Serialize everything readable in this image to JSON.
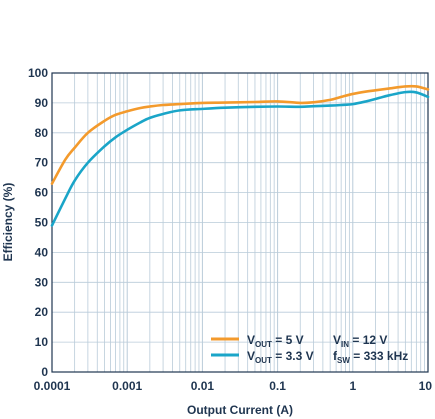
{
  "chart_data": {
    "type": "line",
    "xlabel": "Output Current (A)",
    "ylabel": "Efficiency (%)",
    "x_scale": "log",
    "xlim": [
      0.0001,
      10
    ],
    "ylim": [
      0,
      100
    ],
    "x_ticks": [
      {
        "value": 0.0001,
        "label": "0.0001"
      },
      {
        "value": 0.001,
        "label": "0.001"
      },
      {
        "value": 0.01,
        "label": "0.01"
      },
      {
        "value": 0.1,
        "label": "0.1"
      },
      {
        "value": 1,
        "label": "1"
      },
      {
        "value": 10,
        "label": "10"
      }
    ],
    "y_ticks": [
      0,
      10,
      20,
      30,
      40,
      50,
      60,
      70,
      80,
      90,
      100
    ],
    "grid": true,
    "legend_position": "bottom-right",
    "series": [
      {
        "name_main": "V",
        "name_sub": "OUT",
        "name_tail": " = 5 V",
        "color": "#f39a2c",
        "x": [
          0.0001,
          0.00015,
          0.0002,
          0.0003,
          0.0005,
          0.0007,
          0.001,
          0.0015,
          0.002,
          0.003,
          0.005,
          0.01,
          0.02,
          0.05,
          0.1,
          0.2,
          0.3,
          0.5,
          0.7,
          1,
          1.5,
          2,
          3,
          5,
          7,
          10
        ],
        "y": [
          63,
          71,
          75,
          80,
          84,
          86,
          87.2,
          88.3,
          88.8,
          89.3,
          89.6,
          90,
          90.1,
          90.3,
          90.5,
          90,
          90.2,
          91,
          92,
          93,
          93.8,
          94.2,
          94.8,
          95.5,
          95.5,
          94.5
        ]
      },
      {
        "name_main": "V",
        "name_sub": "OUT",
        "name_tail": " = 3.3 V",
        "color": "#1aa5c8",
        "x": [
          0.0001,
          0.00015,
          0.0002,
          0.0003,
          0.0005,
          0.0007,
          0.001,
          0.0015,
          0.002,
          0.003,
          0.005,
          0.01,
          0.02,
          0.05,
          0.1,
          0.2,
          0.3,
          0.5,
          0.7,
          1,
          1.5,
          2,
          3,
          5,
          7,
          10
        ],
        "y": [
          49,
          58,
          64,
          70,
          75.5,
          78.5,
          81,
          83.5,
          85,
          86.3,
          87.5,
          88,
          88.4,
          88.7,
          88.8,
          88.7,
          88.9,
          89.1,
          89.3,
          89.6,
          90.5,
          91.3,
          92.5,
          93.6,
          93.5,
          92
        ]
      }
    ],
    "annotations": [
      {
        "main": "V",
        "sub": "IN",
        "tail": " = 12 V"
      },
      {
        "main": "f",
        "sub": "SW",
        "tail": " = 333 kHz"
      }
    ]
  }
}
